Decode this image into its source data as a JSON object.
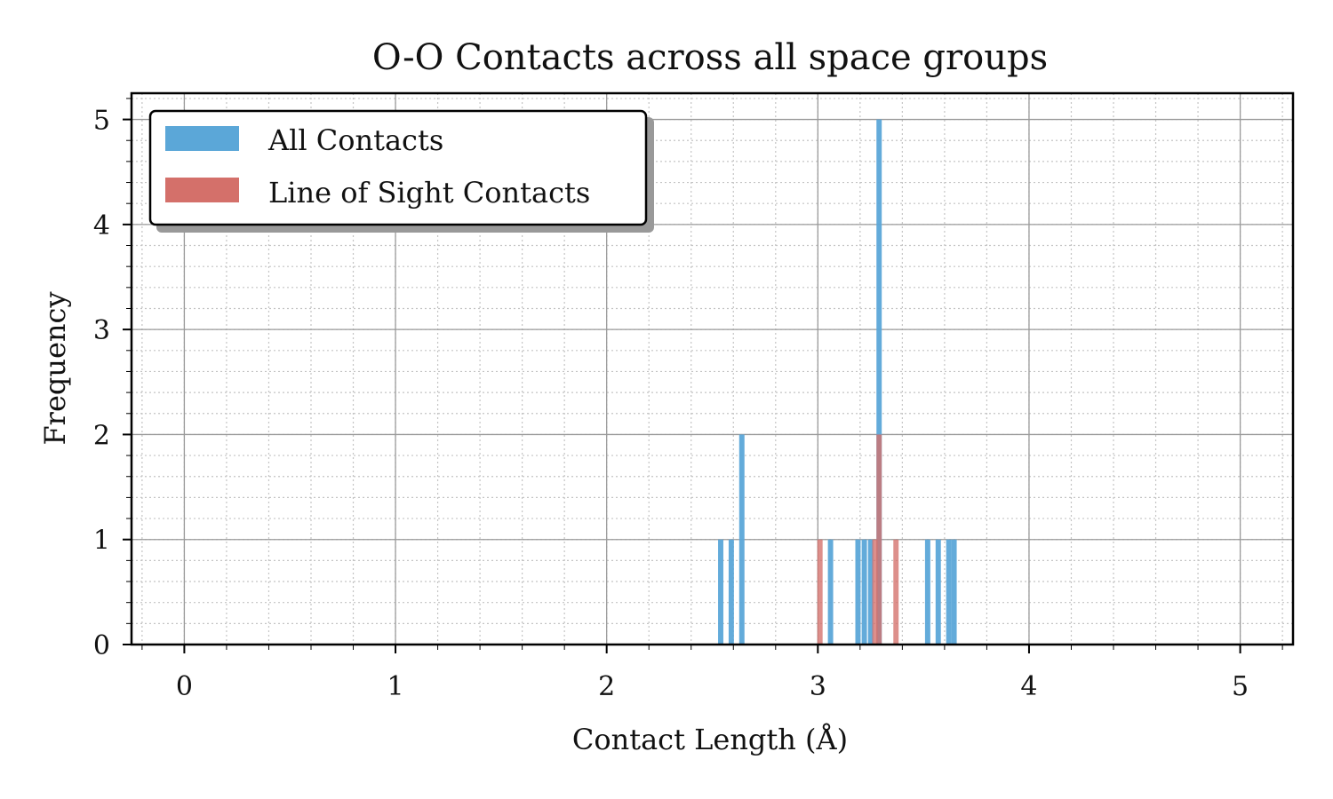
{
  "chart_data": {
    "type": "bar",
    "title": "O-O Contacts across all space groups",
    "xlabel": "Contact Length (Å)",
    "ylabel": "Frequency",
    "xlim": [
      -0.25,
      5.25
    ],
    "ylim": [
      0,
      5.25
    ],
    "xticks": [
      0,
      1,
      2,
      3,
      4,
      5
    ],
    "yticks": [
      0,
      1,
      2,
      3,
      4,
      5
    ],
    "x_tick_labels": [
      "0",
      "1",
      "2",
      "3",
      "4",
      "5"
    ],
    "y_tick_labels": [
      "0",
      "1",
      "2",
      "3",
      "4",
      "5"
    ],
    "grid": true,
    "minor_grid": true,
    "legend_position": "top-left",
    "bin_width": 0.025,
    "series": [
      {
        "name": "All Contacts",
        "color": "#5ba7d8",
        "bins": [
          {
            "x": 2.54,
            "y": 1
          },
          {
            "x": 2.59,
            "y": 1
          },
          {
            "x": 2.64,
            "y": 2
          },
          {
            "x": 3.06,
            "y": 1
          },
          {
            "x": 3.19,
            "y": 1
          },
          {
            "x": 3.22,
            "y": 1
          },
          {
            "x": 3.25,
            "y": 1
          },
          {
            "x": 3.29,
            "y": 5
          },
          {
            "x": 3.52,
            "y": 1
          },
          {
            "x": 3.57,
            "y": 1
          },
          {
            "x": 3.62,
            "y": 1
          },
          {
            "x": 3.645,
            "y": 1
          }
        ]
      },
      {
        "name": "Line of Sight Contacts",
        "color": "#d4706a",
        "bins": [
          {
            "x": 3.01,
            "y": 1
          },
          {
            "x": 3.27,
            "y": 1
          },
          {
            "x": 3.29,
            "y": 2
          },
          {
            "x": 3.37,
            "y": 1
          }
        ]
      }
    ]
  }
}
